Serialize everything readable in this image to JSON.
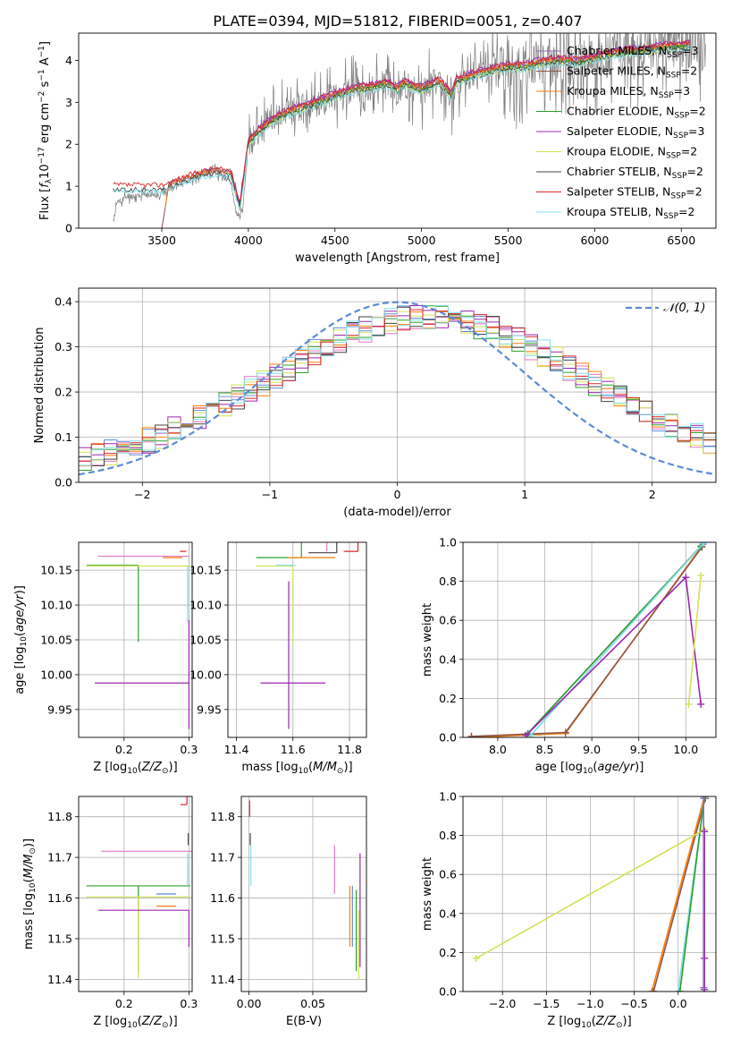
{
  "figure": {
    "title": "PLATE=0394, MJD=51812, FIBERID=0051, z=0.407"
  },
  "chart_data": [
    {
      "id": "spectrum",
      "type": "line",
      "xlabel": "wavelength [Angstrom, rest frame]",
      "ylabel": "Flux [f_λ 10^-17 erg cm^-2 s^-1 A^-1]",
      "xlim": [
        3020,
        6700
      ],
      "ylim": [
        0,
        4.65
      ],
      "xticks": [
        3500,
        4000,
        4500,
        5000,
        5500,
        6000,
        6500
      ],
      "yticks": [
        0,
        1,
        2,
        3,
        4
      ],
      "grid": false,
      "legend_position": "right",
      "observed": {
        "color": "#7f7f7f",
        "x": [
          3220,
          3240,
          3300,
          3350,
          3400,
          3450,
          3500,
          3550,
          3600,
          3650,
          3700,
          3750,
          3800,
          3850,
          3900,
          3933,
          3968,
          4000,
          4050,
          4100,
          4150,
          4200,
          4250,
          4300,
          4350,
          4400,
          4450,
          4500,
          4550,
          4600,
          4650,
          4700,
          4750,
          4800,
          4861,
          4900,
          4950,
          5000,
          5050,
          5100,
          5150,
          5175,
          5200,
          5250,
          5300,
          5350,
          5400,
          5450,
          5500,
          5550,
          5600,
          5650,
          5700,
          5750,
          5800,
          5850,
          5900,
          5950,
          6000,
          6050,
          6100,
          6150,
          6200,
          6250,
          6300,
          6350,
          6400,
          6450,
          6500,
          6550,
          6600,
          6640
        ],
        "y": [
          0.15,
          0.6,
          0.75,
          0.78,
          0.8,
          0.78,
          0.85,
          0.95,
          1.05,
          1.15,
          1.25,
          1.3,
          1.35,
          1.25,
          1.1,
          0.3,
          0.4,
          2.0,
          2.3,
          2.6,
          2.7,
          2.75,
          2.8,
          2.9,
          2.85,
          3.0,
          3.1,
          3.2,
          3.25,
          3.3,
          3.35,
          3.3,
          3.4,
          3.5,
          3.2,
          3.45,
          3.3,
          3.2,
          3.45,
          3.5,
          3.4,
          3.0,
          3.45,
          3.6,
          3.65,
          3.7,
          3.75,
          3.8,
          3.85,
          3.8,
          3.9,
          3.95,
          3.95,
          4.0,
          4.05,
          3.95,
          3.9,
          4.05,
          4.1,
          4.1,
          4.15,
          4.15,
          4.2,
          4.2,
          4.25,
          4.25,
          4.3,
          4.3,
          4.35,
          4.3,
          4.35,
          4.2
        ]
      },
      "base_x": [
        3500,
        3600,
        3700,
        3800,
        3900,
        3950,
        4000,
        4100,
        4200,
        4300,
        4400,
        4500,
        4600,
        4700,
        4800,
        4861,
        4900,
        5000,
        5100,
        5175,
        5200,
        5300,
        5400,
        5500,
        5600,
        5700,
        5800,
        5900,
        6000,
        6100,
        6200,
        6300,
        6400,
        6500
      ],
      "base_y": [
        0.95,
        1.1,
        1.25,
        1.35,
        1.3,
        0.5,
        2.05,
        2.45,
        2.7,
        2.85,
        3.0,
        3.15,
        3.3,
        3.35,
        3.45,
        3.3,
        3.45,
        3.3,
        3.5,
        3.15,
        3.5,
        3.65,
        3.75,
        3.85,
        3.85,
        3.95,
        4.0,
        3.95,
        4.05,
        4.15,
        4.2,
        4.25,
        4.3,
        4.35
      ],
      "series": [
        {
          "name": "Chabrier MILES, N_SSP=3",
          "color": "#9467bd",
          "offset": 0.06,
          "x_min": 3500
        },
        {
          "name": "Salpeter MILES, N_SSP=2",
          "color": "#8c564b",
          "offset": 0.02,
          "x_min": 3500
        },
        {
          "name": "Kroupa MILES, N_SSP=3",
          "color": "#ff7f0e",
          "offset": 0.04,
          "x_min": 3520
        },
        {
          "name": "Chabrier ELODIE, N_SSP=2",
          "color": "#2ca02c",
          "offset": -0.02,
          "x_min": 3900
        },
        {
          "name": "Salpeter ELODIE, N_SSP=3",
          "color": "#9c27b0",
          "offset": 0.1,
          "x_min": 3900
        },
        {
          "name": "Kroupa ELODIE, N_SSP=2",
          "color": "#d4e157",
          "offset": -0.06,
          "x_min": 3900
        },
        {
          "name": "Chabrier STELIB, N_SSP=2",
          "color": "#444444",
          "offset": -0.04,
          "x_min": 3220
        },
        {
          "name": "Salpeter STELIB, N_SSP=2",
          "color": "#d62728",
          "offset": 0.08,
          "x_min": 3220
        },
        {
          "name": "Kroupa STELIB, N_SSP=2",
          "color": "#80deea",
          "offset": -0.08,
          "x_min": 3220
        }
      ]
    },
    {
      "id": "residuals",
      "type": "line",
      "xlabel": "(data-model)/error",
      "ylabel": "Normed distribution",
      "xlim": [
        -2.5,
        2.5
      ],
      "ylim": [
        0,
        0.43
      ],
      "xticks": [
        -2,
        -1,
        0,
        1,
        2
      ],
      "yticks": [
        0.0,
        0.1,
        0.2,
        0.3,
        0.4
      ],
      "grid": true,
      "legend": {
        "label": "N(0,1)",
        "position": "top-right",
        "color": "#5b8bd9"
      },
      "gaussian": {
        "mean": 0,
        "sigma": 1,
        "color": "#5b8bd9"
      },
      "bin_width": 0.1,
      "series": [
        {
          "color": "#5b8bd9",
          "seed": 1
        },
        {
          "color": "#e377c2",
          "seed": 2
        },
        {
          "color": "#ff7f0e",
          "seed": 3
        },
        {
          "color": "#2ca02c",
          "seed": 4
        },
        {
          "color": "#9c27b0",
          "seed": 5
        },
        {
          "color": "#d4e157",
          "seed": 6
        },
        {
          "color": "#444444",
          "seed": 7
        },
        {
          "color": "#d62728",
          "seed": 8
        },
        {
          "color": "#80deea",
          "seed": 9
        }
      ]
    },
    {
      "id": "age-vs-Z",
      "type": "scatter",
      "xlabel": "Z [log10(Z/Z☉)]",
      "ylabel": "age [log10(age/yr)]",
      "xlim": [
        0.13,
        0.305
      ],
      "ylim": [
        9.91,
        10.19
      ],
      "xticks": [
        0.2,
        0.3
      ],
      "yticks": [
        9.95,
        10.0,
        10.05,
        10.1,
        10.15
      ],
      "grid": true,
      "points": [
        {
          "color": "#e377c2",
          "x": 0.23,
          "xerr": [
            0.07,
            0.07
          ],
          "y": 10.17,
          "yerr": [
            0.0,
            0.0
          ]
        },
        {
          "color": "#d62728",
          "x": 0.296,
          "xerr": [
            0.01,
            0.0
          ],
          "y": 10.177,
          "yerr": [
            0.0,
            0.0
          ]
        },
        {
          "color": "#ff7f0e",
          "x": 0.29,
          "xerr": [
            0.03,
            0.0
          ],
          "y": 10.168,
          "yerr": [
            0.0,
            0.0
          ]
        },
        {
          "color": "#2ca02c",
          "x": 0.222,
          "xerr": [
            0.08,
            0.0
          ],
          "y": 10.157,
          "yerr": [
            0.11,
            0.0
          ]
        },
        {
          "color": "#d4e157",
          "x": 0.222,
          "xerr": [
            0.08,
            0.08
          ],
          "y": 10.156,
          "yerr": [
            0.0,
            0.0
          ]
        },
        {
          "color": "#9c27b0",
          "x": 0.3,
          "xerr": [
            0.145,
            0.0
          ],
          "y": 9.988,
          "yerr": [
            0.066,
            0.09
          ]
        },
        {
          "color": "#80deea",
          "x": 0.298,
          "xerr": [
            0.0,
            0.0
          ],
          "y": 10.156,
          "yerr": [
            0.08,
            0.0
          ]
        }
      ]
    },
    {
      "id": "age-vs-mass",
      "type": "scatter",
      "xlabel": "mass [log10(M/M☉)]",
      "ylabel": "",
      "xlim": [
        11.37,
        11.86
      ],
      "ylim": [
        9.91,
        10.19
      ],
      "xticks": [
        11.4,
        11.6,
        11.8
      ],
      "yticks": [
        9.95,
        10.0,
        10.05,
        10.1,
        10.15
      ],
      "grid": true,
      "points": [
        {
          "color": "#9c27b0",
          "x": 11.585,
          "xerr": [
            0.1,
            0.13
          ],
          "y": 9.988,
          "yerr": [
            0.066,
            0.146
          ]
        },
        {
          "color": "#d4e157",
          "x": 11.6,
          "xerr": [
            0.13,
            0.0
          ],
          "y": 10.156,
          "yerr": [
            0.11,
            0.0
          ]
        },
        {
          "color": "#e377c2",
          "x": 11.72,
          "xerr": [
            0.0,
            0.0
          ],
          "y": 10.177,
          "yerr": [
            0.0,
            0.08
          ]
        },
        {
          "color": "#2ca02c",
          "x": 11.63,
          "xerr": [
            0.16,
            0.0
          ],
          "y": 10.168,
          "yerr": [
            0.0,
            0.09
          ]
        },
        {
          "color": "#ff7f0e",
          "x": 11.58,
          "xerr": [
            0.0,
            0.17
          ],
          "y": 10.168,
          "yerr": [
            0.0,
            0.0
          ]
        },
        {
          "color": "#444444",
          "x": 11.755,
          "xerr": [
            0.1,
            0.0
          ],
          "y": 10.175,
          "yerr": [
            0.0,
            0.1
          ]
        },
        {
          "color": "#d62728",
          "x": 11.83,
          "xerr": [
            0.05,
            0.0
          ],
          "y": 10.177,
          "yerr": [
            0.0,
            0.03
          ]
        },
        {
          "color": "#80deea",
          "x": 11.61,
          "xerr": [
            0.07,
            0.0
          ],
          "y": 10.157,
          "yerr": [
            0.0,
            0.0
          ]
        }
      ]
    },
    {
      "id": "mass-weight-vs-age",
      "type": "line",
      "xlabel": "age [log10(age/yr)]",
      "ylabel": "mass weight",
      "xlim": [
        7.63,
        10.32
      ],
      "ylim": [
        0,
        1.0
      ],
      "xticks": [
        8.0,
        8.5,
        9.0,
        9.5,
        10.0
      ],
      "yticks": [
        0.0,
        0.2,
        0.4,
        0.6,
        0.8,
        1.0
      ],
      "grid": true,
      "series": [
        {
          "color": "#ff7f0e",
          "x": [
            7.72,
            8.72,
            10.17
          ],
          "y": [
            0.0,
            0.02,
            0.98
          ]
        },
        {
          "color": "#8c564b",
          "x": [
            7.72,
            8.72,
            10.17
          ],
          "y": [
            0.005,
            0.025,
            0.975
          ]
        },
        {
          "color": "#9467bd",
          "x": [
            8.3,
            10.18
          ],
          "y": [
            0.01,
            0.99
          ]
        },
        {
          "color": "#2ca02c",
          "x": [
            8.32,
            10.16
          ],
          "y": [
            0.02,
            0.98
          ]
        },
        {
          "color": "#80deea",
          "x": [
            8.35,
            10.19
          ],
          "y": [
            0.01,
            0.995
          ]
        },
        {
          "color": "#9c27b0",
          "x": [
            8.3,
            10.0,
            10.16
          ],
          "y": [
            0.01,
            0.82,
            0.17
          ]
        },
        {
          "color": "#d4e157",
          "x": [
            10.03,
            10.16
          ],
          "y": [
            0.17,
            0.83
          ]
        }
      ]
    },
    {
      "id": "mass-vs-Z",
      "type": "scatter",
      "xlabel": "Z [log10(Z/Z☉)]",
      "ylabel": "mass [log10(M/M☉)]",
      "xlim": [
        0.13,
        0.305
      ],
      "ylim": [
        11.37,
        11.85
      ],
      "xticks": [
        0.2,
        0.3
      ],
      "yticks": [
        11.4,
        11.5,
        11.6,
        11.7,
        11.8
      ],
      "grid": true,
      "points": [
        {
          "color": "#d62728",
          "x": 0.297,
          "xerr": [
            0.01,
            0.0
          ],
          "y": 11.83,
          "yerr": [
            0.0,
            0.05
          ]
        },
        {
          "color": "#e377c2",
          "x": 0.225,
          "xerr": [
            0.06,
            0.08
          ],
          "y": 11.715,
          "yerr": [
            0.0,
            0.0
          ]
        },
        {
          "color": "#2ca02c",
          "x": 0.222,
          "xerr": [
            0.08,
            0.08
          ],
          "y": 11.63,
          "yerr": [
            0.21,
            0.0
          ]
        },
        {
          "color": "#d4e157",
          "x": 0.222,
          "xerr": [
            0.08,
            0.08
          ],
          "y": 11.603,
          "yerr": [
            0.2,
            0.0
          ]
        },
        {
          "color": "#5b8bd9",
          "x": 0.28,
          "xerr": [
            0.03,
            0.0
          ],
          "y": 11.61,
          "yerr": [
            0.0,
            0.0
          ]
        },
        {
          "color": "#ff7f0e",
          "x": 0.28,
          "xerr": [
            0.03,
            0.0
          ],
          "y": 11.58,
          "yerr": [
            0.0,
            0.0
          ]
        },
        {
          "color": "#9c27b0",
          "x": 0.3,
          "xerr": [
            0.14,
            0.0
          ],
          "y": 11.57,
          "yerr": [
            0.09,
            0.0
          ]
        },
        {
          "color": "#444444",
          "x": 0.299,
          "xerr": [
            0.0,
            0.0
          ],
          "y": 11.73,
          "yerr": [
            0.0,
            0.03
          ]
        },
        {
          "color": "#80deea",
          "x": 0.298,
          "xerr": [
            0.0,
            0.0
          ],
          "y": 11.63,
          "yerr": [
            0.0,
            0.08
          ]
        }
      ]
    },
    {
      "id": "mass-vs-EBV",
      "type": "scatter",
      "xlabel": "E(B-V)",
      "ylabel": "",
      "xlim": [
        -0.006,
        0.092
      ],
      "ylim": [
        11.37,
        11.85
      ],
      "xticks": [
        0.0,
        0.05
      ],
      "yticks": [
        11.4,
        11.5,
        11.6,
        11.7,
        11.8
      ],
      "grid": true,
      "points": [
        {
          "color": "#d62728",
          "x": 0.0005,
          "y": 11.8,
          "yerr": [
            0.0,
            0.04
          ]
        },
        {
          "color": "#444444",
          "x": 0.001,
          "y": 11.73,
          "yerr": [
            0.0,
            0.03
          ]
        },
        {
          "color": "#80deea",
          "x": 0.0015,
          "y": 11.68,
          "yerr": [
            0.05,
            0.05
          ]
        },
        {
          "color": "#e377c2",
          "x": 0.067,
          "y": 11.68,
          "yerr": [
            0.07,
            0.05
          ]
        },
        {
          "color": "#ff7f0e",
          "x": 0.079,
          "y": 11.56,
          "yerr": [
            0.08,
            0.07
          ]
        },
        {
          "color": "#5b8bd9",
          "x": 0.081,
          "y": 11.55,
          "yerr": [
            0.07,
            0.08
          ]
        },
        {
          "color": "#2ca02c",
          "x": 0.084,
          "y": 11.52,
          "yerr": [
            0.1,
            0.1
          ]
        },
        {
          "color": "#9c27b0",
          "x": 0.087,
          "y": 11.6,
          "yerr": [
            0.17,
            0.11
          ]
        },
        {
          "color": "#d4e157",
          "x": 0.086,
          "y": 11.5,
          "yerr": [
            0.1,
            0.07
          ]
        }
      ]
    },
    {
      "id": "mass-weight-vs-Z",
      "type": "line",
      "xlabel": "Z [log10(Z/Z☉)]",
      "ylabel": "mass weight",
      "xlim": [
        -2.45,
        0.43
      ],
      "ylim": [
        0,
        1.0
      ],
      "xticks": [
        -2.0,
        -1.5,
        -1.0,
        -0.5,
        0.0
      ],
      "yticks": [
        0.0,
        0.2,
        0.4,
        0.6,
        0.8,
        1.0
      ],
      "grid": true,
      "series": [
        {
          "color": "#ff7f0e",
          "x": [
            -0.3,
            0.3
          ],
          "y": [
            0.0,
            1.0
          ]
        },
        {
          "color": "#8c564b",
          "x": [
            -0.28,
            0.31
          ],
          "y": [
            0.0,
            0.99
          ]
        },
        {
          "color": "#80deea",
          "x": [
            0.0,
            0.3
          ],
          "y": [
            0.0,
            1.0
          ]
        },
        {
          "color": "#2ca02c",
          "x": [
            0.02,
            0.3
          ],
          "y": [
            0.0,
            1.0
          ]
        },
        {
          "color": "#d4e157",
          "x": [
            -2.3,
            0.3
          ],
          "y": [
            0.17,
            0.83
          ]
        },
        {
          "color": "#9c27b0",
          "x": [
            0.3,
            0.3,
            0.3
          ],
          "y": [
            0.01,
            0.82,
            0.17
          ]
        },
        {
          "color": "#9467bd",
          "x": [
            0.29,
            0.29
          ],
          "y": [
            0.02,
            0.99
          ]
        }
      ]
    }
  ]
}
